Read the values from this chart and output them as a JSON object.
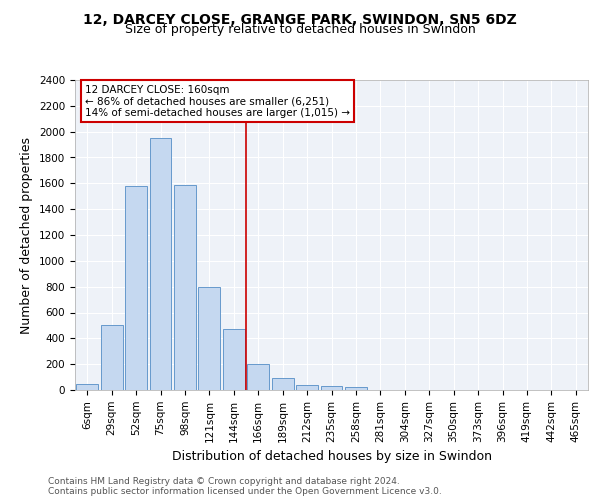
{
  "title_line1": "12, DARCEY CLOSE, GRANGE PARK, SWINDON, SN5 6DZ",
  "title_line2": "Size of property relative to detached houses in Swindon",
  "xlabel": "Distribution of detached houses by size in Swindon",
  "ylabel": "Number of detached properties",
  "categories": [
    "6sqm",
    "29sqm",
    "52sqm",
    "75sqm",
    "98sqm",
    "121sqm",
    "144sqm",
    "166sqm",
    "189sqm",
    "212sqm",
    "235sqm",
    "258sqm",
    "281sqm",
    "304sqm",
    "327sqm",
    "350sqm",
    "373sqm",
    "396sqm",
    "419sqm",
    "442sqm",
    "465sqm"
  ],
  "values": [
    50,
    500,
    1580,
    1950,
    1590,
    800,
    475,
    200,
    90,
    40,
    30,
    20,
    0,
    0,
    0,
    0,
    0,
    0,
    0,
    0,
    0
  ],
  "bar_color": "#c5d8f0",
  "bar_edge_color": "#6699cc",
  "vline_x_idx": 6.5,
  "vline_color": "#cc0000",
  "annotation_text": "12 DARCEY CLOSE: 160sqm\n← 86% of detached houses are smaller (6,251)\n14% of semi-detached houses are larger (1,015) →",
  "annotation_box_color": "#ffffff",
  "annotation_box_edge": "#cc0000",
  "ylim": [
    0,
    2400
  ],
  "yticks": [
    0,
    200,
    400,
    600,
    800,
    1000,
    1200,
    1400,
    1600,
    1800,
    2000,
    2200,
    2400
  ],
  "footnote1": "Contains HM Land Registry data © Crown copyright and database right 2024.",
  "footnote2": "Contains public sector information licensed under the Open Government Licence v3.0.",
  "bg_color": "#eef2f8",
  "grid_color": "#ffffff",
  "title_fontsize": 10,
  "subtitle_fontsize": 9,
  "axis_label_fontsize": 9,
  "tick_fontsize": 7.5,
  "annotation_fontsize": 7.5,
  "footnote_fontsize": 6.5
}
